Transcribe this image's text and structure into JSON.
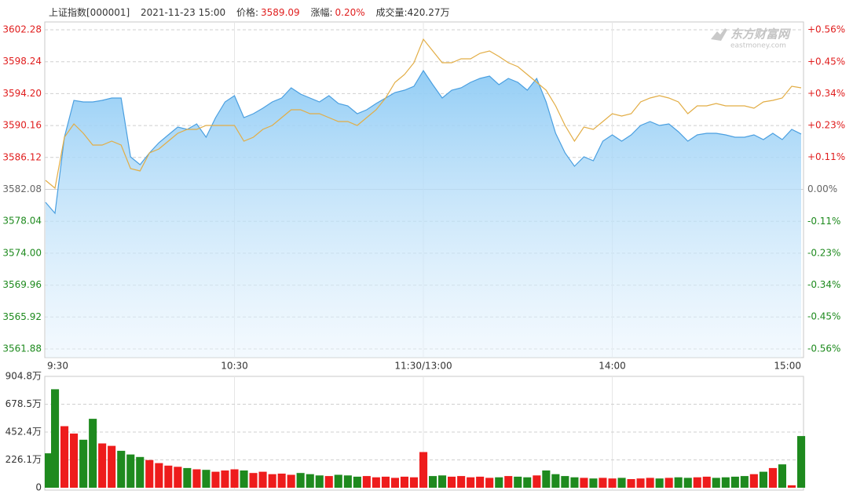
{
  "header": {
    "name": "上证指数[000001]",
    "time": "2021-11-23 15:00",
    "price_label": "价格:",
    "price": "3589.09",
    "change_label": "涨幅:",
    "change": "0.20%",
    "volume": "成交量:420.27万"
  },
  "watermark": {
    "brand": "东方财富网",
    "site": "eastmoney.com"
  },
  "chart_data": [
    {
      "type": "line",
      "grid": true,
      "up_color": "#e01e1e",
      "down_color": "#1e8a1e",
      "flat_color": "#666666",
      "x": [
        0,
        3,
        6,
        9,
        12,
        15,
        18,
        21,
        24,
        27,
        30,
        33,
        36,
        39,
        42,
        45,
        48,
        51,
        54,
        57,
        60,
        63,
        66,
        69,
        72,
        75,
        78,
        81,
        84,
        87,
        90,
        93,
        96,
        99,
        102,
        105,
        108,
        111,
        114,
        117,
        120,
        123,
        126,
        129,
        132,
        135,
        138,
        141,
        144,
        147,
        150,
        153,
        156,
        159,
        162,
        165,
        168,
        171,
        174,
        177,
        180,
        183,
        186,
        189,
        192,
        195,
        198,
        201,
        204,
        207,
        210,
        213,
        216,
        219,
        222,
        225,
        228,
        231,
        234,
        237,
        240
      ],
      "xlim": [
        0,
        240
      ],
      "xticks": [
        {
          "value": 0,
          "label": "9:30"
        },
        {
          "value": 60,
          "label": "10:30"
        },
        {
          "value": 120,
          "label": "11:30/13:00"
        },
        {
          "value": 180,
          "label": "14:00"
        },
        {
          "value": 240,
          "label": "15:00"
        }
      ],
      "ylim": [
        3561.88,
        3602.28
      ],
      "yticks": [
        3602.28,
        3598.24,
        {
          "value": 3594.2,
          "label": "3594.20"
        },
        3590.16,
        3586.12,
        3582.08,
        3578.04,
        {
          "value": 3574,
          "label": "3574.00"
        },
        3569.96,
        3565.92,
        3561.88
      ],
      "y2lim": [
        -0.564,
        0.564
      ],
      "y2ticks": [
        {
          "value": 0.564,
          "label": "+0.56%"
        },
        {
          "value": 0.451,
          "label": "+0.45%"
        },
        {
          "value": 0.338,
          "label": "+0.34%"
        },
        {
          "value": 0.226,
          "label": "+0.23%"
        },
        {
          "value": 0.113,
          "label": "+0.11%"
        },
        {
          "value": 0,
          "label": "0.00%"
        },
        {
          "value": -0.113,
          "label": "-0.11%"
        },
        {
          "value": -0.226,
          "label": "-0.23%"
        },
        {
          "value": -0.338,
          "label": "-0.34%"
        },
        {
          "value": -0.451,
          "label": "-0.45%"
        },
        {
          "value": -0.564,
          "label": "-0.56%"
        }
      ],
      "series": [
        {
          "color": "#4a9fe0",
          "area": true,
          "values": [
            3580.44,
            3579.05,
            3588.68,
            3593.35,
            3593.15,
            3593.15,
            3593.35,
            3593.64,
            3593.64,
            3586.2,
            3585.21,
            3586.7,
            3587.99,
            3588.98,
            3589.97,
            3589.67,
            3590.37,
            3588.68,
            3591.16,
            3593.15,
            3593.94,
            3591.16,
            3591.66,
            3592.35,
            3593.15,
            3593.64,
            3594.93,
            3594.14,
            3593.64,
            3593.15,
            3593.94,
            3592.95,
            3592.65,
            3591.66,
            3592.16,
            3592.95,
            3593.64,
            3594.34,
            3594.64,
            3595.13,
            3597.12,
            3595.33,
            3593.64,
            3594.64,
            3594.93,
            3595.63,
            3596.13,
            3596.42,
            3595.33,
            3596.13,
            3595.63,
            3594.64,
            3596.13,
            3593.15,
            3589.18,
            3586.7,
            3585.01,
            3586.2,
            3585.7,
            3588.18,
            3588.98,
            3588.18,
            3588.98,
            3590.17,
            3590.67,
            3590.17,
            3590.37,
            3589.38,
            3588.18,
            3588.98,
            3589.18,
            3589.18,
            3588.98,
            3588.68,
            3588.68,
            3588.98,
            3588.38,
            3589.18,
            3588.38,
            3589.67,
            3589.09
          ]
        },
        {
          "color": "#e2ad45",
          "values": [
            3583.22,
            3582.23,
            3588.68,
            3590.37,
            3589.18,
            3587.69,
            3587.69,
            3588.18,
            3587.69,
            3584.71,
            3584.41,
            3586.7,
            3587.19,
            3588.18,
            3589.18,
            3589.67,
            3589.67,
            3590.17,
            3590.17,
            3590.17,
            3590.17,
            3588.18,
            3588.68,
            3589.67,
            3590.17,
            3591.16,
            3592.16,
            3592.16,
            3591.66,
            3591.66,
            3591.16,
            3590.67,
            3590.67,
            3590.17,
            3591.16,
            3592.16,
            3593.64,
            3595.63,
            3596.62,
            3598.11,
            3601.09,
            3599.6,
            3598.11,
            3598.11,
            3598.61,
            3598.61,
            3599.3,
            3599.6,
            3598.91,
            3598.11,
            3597.61,
            3596.62,
            3595.63,
            3594.64,
            3592.65,
            3590.17,
            3588.18,
            3589.97,
            3589.67,
            3590.67,
            3591.66,
            3591.36,
            3591.66,
            3593.15,
            3593.64,
            3593.94,
            3593.64,
            3593.15,
            3591.66,
            3592.65,
            3592.65,
            3592.95,
            3592.65,
            3592.65,
            3592.65,
            3592.35,
            3593.15,
            3593.35,
            3593.64,
            3595.13,
            3594.93
          ]
        }
      ]
    },
    {
      "type": "bar",
      "grid": true,
      "up_color": "#ee1c1c",
      "down_color": "#1e8a1e",
      "x": [
        0,
        3,
        6,
        9,
        12,
        15,
        18,
        21,
        24,
        27,
        30,
        33,
        36,
        39,
        42,
        45,
        48,
        51,
        54,
        57,
        60,
        63,
        66,
        69,
        72,
        75,
        78,
        81,
        84,
        87,
        90,
        93,
        96,
        99,
        102,
        105,
        108,
        111,
        114,
        117,
        120,
        123,
        126,
        129,
        132,
        135,
        138,
        141,
        144,
        147,
        150,
        153,
        156,
        159,
        162,
        165,
        168,
        171,
        174,
        177,
        180,
        183,
        186,
        189,
        192,
        195,
        198,
        201,
        204,
        207,
        210,
        213,
        216,
        219,
        222,
        225,
        228,
        231,
        234,
        237,
        240
      ],
      "xlim": [
        0,
        240
      ],
      "ylim": [
        0,
        904.8
      ],
      "yticks": [
        {
          "value": 904.8,
          "label": "904.8万"
        },
        {
          "value": 678.5,
          "label": "678.5万"
        },
        {
          "value": 452.4,
          "label": "452.4万"
        },
        {
          "value": 226.1,
          "label": "226.1万"
        },
        0
      ],
      "values": [
        280,
        800,
        500,
        440,
        390,
        560,
        360,
        340,
        300,
        270,
        250,
        225,
        200,
        180,
        170,
        160,
        150,
        145,
        130,
        140,
        150,
        140,
        120,
        130,
        110,
        115,
        105,
        120,
        110,
        100,
        95,
        105,
        100,
        90,
        95,
        85,
        90,
        80,
        90,
        85,
        290,
        95,
        100,
        90,
        95,
        85,
        90,
        80,
        85,
        95,
        90,
        85,
        100,
        140,
        110,
        95,
        85,
        80,
        75,
        80,
        75,
        80,
        70,
        75,
        80,
        75,
        80,
        85,
        80,
        85,
        90,
        80,
        85,
        90,
        95,
        110,
        130,
        160,
        190,
        20,
        420
      ]
    }
  ]
}
